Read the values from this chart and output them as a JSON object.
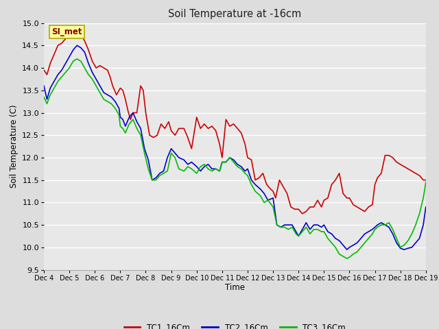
{
  "title": "Soil Temperature at -16cm",
  "xlabel": "Time",
  "ylabel": "Soil Temperature (C)",
  "ylim": [
    9.5,
    15.0
  ],
  "yticks": [
    9.5,
    10.0,
    10.5,
    11.0,
    11.5,
    12.0,
    12.5,
    13.0,
    13.5,
    14.0,
    14.5,
    15.0
  ],
  "xlim": [
    0,
    15
  ],
  "xtick_positions": [
    0,
    1,
    2,
    3,
    4,
    5,
    6,
    7,
    8,
    9,
    10,
    11,
    12,
    13,
    14,
    15
  ],
  "xtick_labels": [
    "Dec 4",
    "Dec 5",
    "Dec 6",
    "Dec 7",
    "Dec 8",
    "Dec 9",
    "Dec 10",
    "Dec 11",
    "Dec 12",
    "Dec 13",
    "Dec 14",
    "Dec 15",
    "Dec 16",
    "Dec 17",
    "Dec 18",
    "Dec 19"
  ],
  "background_color": "#dddddd",
  "plot_bg_color": "#e8e8e8",
  "grid_color": "#ffffff",
  "legend_box_color": "#ffff99",
  "legend_box_text": "SI_met",
  "series": [
    {
      "label": "TC1_16Cm",
      "color": "#cc0000",
      "lw": 1.2
    },
    {
      "label": "TC2_16Cm",
      "color": "#0000cc",
      "lw": 1.2
    },
    {
      "label": "TC3_16Cm",
      "color": "#00bb00",
      "lw": 1.2
    }
  ],
  "tc1_x": [
    0.0,
    0.12,
    0.25,
    0.4,
    0.55,
    0.7,
    0.85,
    1.0,
    1.15,
    1.3,
    1.45,
    1.6,
    1.75,
    1.9,
    2.05,
    2.2,
    2.35,
    2.5,
    2.6,
    2.7,
    2.85,
    3.0,
    3.1,
    3.2,
    3.3,
    3.4,
    3.5,
    3.65,
    3.8,
    3.9,
    4.0,
    4.15,
    4.3,
    4.45,
    4.6,
    4.75,
    4.9,
    5.0,
    5.15,
    5.3,
    5.5,
    5.65,
    5.8,
    6.0,
    6.15,
    6.3,
    6.45,
    6.6,
    6.75,
    6.9,
    7.0,
    7.15,
    7.3,
    7.45,
    7.6,
    7.75,
    7.9,
    8.0,
    8.15,
    8.3,
    8.45,
    8.6,
    8.75,
    8.9,
    9.0,
    9.1,
    9.25,
    9.4,
    9.55,
    9.7,
    9.85,
    10.0,
    10.15,
    10.3,
    10.45,
    10.6,
    10.75,
    10.9,
    11.0,
    11.15,
    11.3,
    11.45,
    11.6,
    11.75,
    11.9,
    12.0,
    12.15,
    12.3,
    12.45,
    12.6,
    12.75,
    12.9,
    13.0,
    13.1,
    13.25,
    13.4,
    13.55,
    13.7,
    13.85,
    14.0,
    14.15,
    14.3,
    14.45,
    14.6,
    14.75,
    14.9,
    15.0
  ],
  "tc1_y": [
    13.95,
    13.85,
    14.1,
    14.3,
    14.5,
    14.55,
    14.65,
    14.75,
    14.85,
    14.9,
    14.75,
    14.6,
    14.4,
    14.15,
    14.0,
    14.05,
    14.0,
    13.95,
    13.8,
    13.6,
    13.4,
    13.55,
    13.5,
    13.3,
    13.05,
    12.85,
    13.0,
    13.0,
    13.6,
    13.5,
    13.0,
    12.5,
    12.45,
    12.5,
    12.75,
    12.65,
    12.8,
    12.6,
    12.5,
    12.65,
    12.65,
    12.45,
    12.2,
    12.9,
    12.65,
    12.75,
    12.65,
    12.7,
    12.6,
    12.3,
    12.0,
    12.85,
    12.7,
    12.75,
    12.65,
    12.55,
    12.3,
    12.0,
    11.95,
    11.5,
    11.55,
    11.65,
    11.4,
    11.3,
    11.25,
    11.1,
    11.5,
    11.35,
    11.2,
    10.9,
    10.85,
    10.85,
    10.75,
    10.8,
    10.9,
    10.9,
    11.05,
    10.9,
    11.05,
    11.1,
    11.4,
    11.5,
    11.65,
    11.2,
    11.1,
    11.1,
    10.95,
    10.9,
    10.85,
    10.8,
    10.9,
    10.95,
    11.4,
    11.55,
    11.65,
    12.05,
    12.05,
    12.0,
    11.9,
    11.85,
    11.8,
    11.75,
    11.7,
    11.65,
    11.6,
    11.5,
    11.5
  ],
  "tc2_x": [
    0.0,
    0.12,
    0.25,
    0.4,
    0.55,
    0.7,
    0.85,
    1.0,
    1.15,
    1.3,
    1.45,
    1.6,
    1.75,
    1.9,
    2.05,
    2.2,
    2.35,
    2.5,
    2.65,
    2.8,
    2.95,
    3.0,
    3.1,
    3.2,
    3.35,
    3.5,
    3.65,
    3.8,
    3.95,
    4.1,
    4.25,
    4.4,
    4.55,
    4.7,
    4.85,
    5.0,
    5.15,
    5.3,
    5.5,
    5.65,
    5.8,
    6.0,
    6.15,
    6.3,
    6.45,
    6.6,
    6.75,
    6.9,
    7.0,
    7.15,
    7.3,
    7.45,
    7.6,
    7.75,
    7.9,
    8.0,
    8.15,
    8.3,
    8.5,
    8.65,
    8.8,
    9.0,
    9.15,
    9.3,
    9.45,
    9.6,
    9.75,
    9.9,
    10.0,
    10.15,
    10.3,
    10.45,
    10.6,
    10.75,
    10.9,
    11.0,
    11.15,
    11.3,
    11.45,
    11.6,
    11.75,
    11.9,
    12.0,
    12.15,
    12.3,
    12.45,
    12.6,
    12.75,
    12.9,
    13.0,
    13.1,
    13.25,
    13.4,
    13.55,
    13.7,
    13.85,
    14.0,
    14.15,
    14.3,
    14.45,
    14.6,
    14.75,
    14.9,
    15.0
  ],
  "tc2_y": [
    13.6,
    13.3,
    13.55,
    13.7,
    13.85,
    13.95,
    14.1,
    14.25,
    14.4,
    14.5,
    14.45,
    14.35,
    14.1,
    13.9,
    13.75,
    13.6,
    13.45,
    13.4,
    13.35,
    13.25,
    13.1,
    12.9,
    12.85,
    12.7,
    12.9,
    13.0,
    12.8,
    12.65,
    12.2,
    11.95,
    11.5,
    11.55,
    11.65,
    11.7,
    12.0,
    12.2,
    12.1,
    12.0,
    11.95,
    11.85,
    11.9,
    11.8,
    11.7,
    11.8,
    11.85,
    11.75,
    11.75,
    11.7,
    11.9,
    11.9,
    12.0,
    11.95,
    11.85,
    11.8,
    11.7,
    11.75,
    11.5,
    11.4,
    11.3,
    11.2,
    11.05,
    11.1,
    10.5,
    10.45,
    10.5,
    10.5,
    10.5,
    10.35,
    10.25,
    10.4,
    10.55,
    10.4,
    10.5,
    10.5,
    10.45,
    10.5,
    10.35,
    10.3,
    10.2,
    10.15,
    10.05,
    9.95,
    10.0,
    10.05,
    10.1,
    10.2,
    10.3,
    10.35,
    10.4,
    10.45,
    10.5,
    10.55,
    10.5,
    10.45,
    10.3,
    10.1,
    9.98,
    9.95,
    9.98,
    10.0,
    10.1,
    10.2,
    10.5,
    10.9
  ],
  "tc3_x": [
    0.0,
    0.12,
    0.25,
    0.4,
    0.55,
    0.7,
    0.85,
    1.0,
    1.15,
    1.3,
    1.45,
    1.6,
    1.75,
    1.9,
    2.05,
    2.2,
    2.35,
    2.5,
    2.65,
    2.8,
    2.95,
    3.0,
    3.1,
    3.2,
    3.35,
    3.5,
    3.65,
    3.8,
    3.95,
    4.1,
    4.25,
    4.4,
    4.55,
    4.7,
    4.85,
    5.0,
    5.15,
    5.3,
    5.5,
    5.65,
    5.8,
    6.0,
    6.15,
    6.3,
    6.45,
    6.6,
    6.75,
    6.9,
    7.0,
    7.15,
    7.3,
    7.45,
    7.6,
    7.75,
    7.9,
    8.0,
    8.15,
    8.3,
    8.5,
    8.65,
    8.8,
    9.0,
    9.15,
    9.3,
    9.45,
    9.6,
    9.75,
    9.9,
    10.0,
    10.15,
    10.3,
    10.45,
    10.6,
    10.75,
    10.9,
    11.0,
    11.15,
    11.3,
    11.45,
    11.6,
    11.75,
    11.9,
    12.0,
    12.15,
    12.3,
    12.45,
    12.6,
    12.75,
    12.9,
    13.0,
    13.1,
    13.25,
    13.4,
    13.55,
    13.7,
    13.85,
    14.0,
    14.15,
    14.3,
    14.45,
    14.6,
    14.75,
    14.9,
    15.0
  ],
  "tc3_y": [
    13.35,
    13.2,
    13.4,
    13.55,
    13.7,
    13.8,
    13.9,
    14.0,
    14.15,
    14.2,
    14.15,
    14.0,
    13.85,
    13.75,
    13.6,
    13.45,
    13.3,
    13.25,
    13.2,
    13.1,
    12.95,
    12.7,
    12.65,
    12.55,
    12.75,
    12.85,
    12.65,
    12.5,
    12.1,
    11.75,
    11.5,
    11.5,
    11.6,
    11.65,
    11.7,
    12.1,
    12.0,
    11.75,
    11.7,
    11.8,
    11.75,
    11.65,
    11.8,
    11.85,
    11.75,
    11.7,
    11.75,
    11.7,
    11.9,
    11.9,
    12.0,
    11.9,
    11.8,
    11.75,
    11.65,
    11.6,
    11.4,
    11.25,
    11.15,
    11.0,
    11.05,
    10.9,
    10.5,
    10.45,
    10.45,
    10.4,
    10.45,
    10.3,
    10.25,
    10.35,
    10.45,
    10.3,
    10.4,
    10.4,
    10.35,
    10.35,
    10.2,
    10.1,
    10.0,
    9.85,
    9.8,
    9.75,
    9.78,
    9.85,
    9.9,
    10.0,
    10.1,
    10.2,
    10.3,
    10.4,
    10.45,
    10.5,
    10.5,
    10.55,
    10.4,
    10.2,
    10.0,
    10.05,
    10.15,
    10.3,
    10.5,
    10.75,
    11.1,
    11.45
  ]
}
